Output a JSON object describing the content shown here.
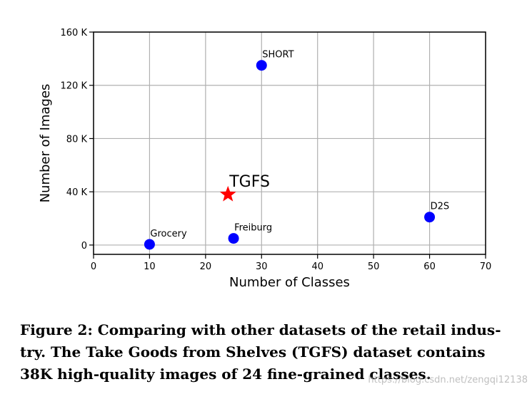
{
  "chart_data": {
    "type": "scatter",
    "xlabel": "Number of Classes",
    "ylabel": "Number of Images",
    "xlim": [
      0,
      70
    ],
    "ylim": [
      -7000,
      160000
    ],
    "xticks": [
      0,
      10,
      20,
      30,
      40,
      50,
      60,
      70
    ],
    "yticks": [
      0,
      40000,
      80000,
      120000,
      160000
    ],
    "ytick_labels": [
      "0",
      "40 K",
      "80 K",
      "120 K",
      "160 K"
    ],
    "grid": true,
    "points": [
      {
        "label": "Grocery",
        "x": 10,
        "y": 500,
        "marker": "circle",
        "color": "#0000ff"
      },
      {
        "label": "Freiburg",
        "x": 25,
        "y": 5000,
        "marker": "circle",
        "color": "#0000ff"
      },
      {
        "label": "SHORT",
        "x": 30,
        "y": 135000,
        "marker": "circle",
        "color": "#0000ff"
      },
      {
        "label": "D2S",
        "x": 60,
        "y": 21000,
        "marker": "circle",
        "color": "#0000ff"
      },
      {
        "label": "TGFS",
        "x": 24,
        "y": 38000,
        "marker": "star",
        "color": "#ff0000"
      }
    ]
  },
  "caption": {
    "lines": [
      "Figure 2: Comparing with other datasets of the retail indus-",
      "try. The Take Goods from Shelves (TGFS) dataset contains",
      "38K high-quality images of 24 fine-grained classes."
    ]
  },
  "watermark": "https://blog.csdn.net/zengqi12138"
}
